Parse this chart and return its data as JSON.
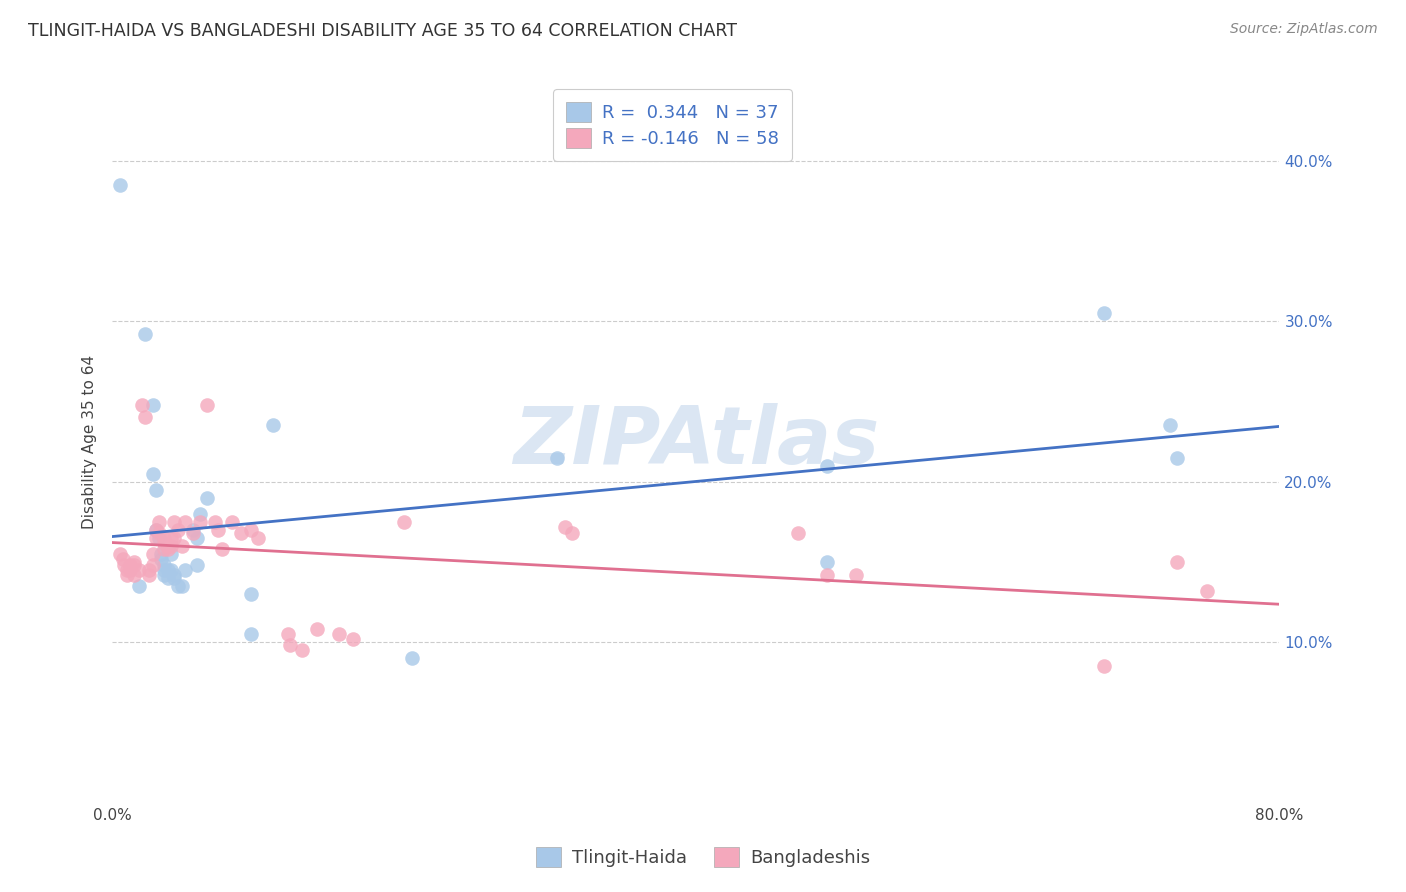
{
  "title": "TLINGIT-HAIDA VS BANGLADESHI DISABILITY AGE 35 TO 64 CORRELATION CHART",
  "source": "Source: ZipAtlas.com",
  "ylabel": "Disability Age 35 to 64",
  "watermark": "ZIPAtlas",
  "legend_blue_r_val": "0.344",
  "legend_blue_n_val": "37",
  "legend_pink_r_val": "-0.146",
  "legend_pink_n_val": "58",
  "legend_label_blue": "Tlingit-Haida",
  "legend_label_pink": "Bangladeshis",
  "xlim": [
    0.0,
    0.8
  ],
  "ylim": [
    0.0,
    0.45
  ],
  "yticks": [
    0.1,
    0.2,
    0.3,
    0.4
  ],
  "ytick_labels": [
    "10.0%",
    "20.0%",
    "30.0%",
    "40.0%"
  ],
  "xticks": [
    0.0,
    0.1,
    0.2,
    0.3,
    0.4,
    0.5,
    0.6,
    0.7,
    0.8
  ],
  "xtick_labels": [
    "0.0%",
    "",
    "",
    "",
    "",
    "",
    "",
    "",
    "80.0%"
  ],
  "blue_scatter_color": "#a8c8e8",
  "pink_scatter_color": "#f4a8bc",
  "blue_line_color": "#4472c4",
  "pink_line_color": "#e07090",
  "background_color": "#ffffff",
  "grid_color": "#cccccc",
  "blue_points": [
    [
      0.005,
      0.385
    ],
    [
      0.018,
      0.135
    ],
    [
      0.022,
      0.292
    ],
    [
      0.028,
      0.248
    ],
    [
      0.028,
      0.205
    ],
    [
      0.03,
      0.195
    ],
    [
      0.03,
      0.17
    ],
    [
      0.032,
      0.165
    ],
    [
      0.033,
      0.155
    ],
    [
      0.033,
      0.152
    ],
    [
      0.035,
      0.148
    ],
    [
      0.035,
      0.145
    ],
    [
      0.035,
      0.142
    ],
    [
      0.038,
      0.145
    ],
    [
      0.038,
      0.14
    ],
    [
      0.04,
      0.155
    ],
    [
      0.04,
      0.145
    ],
    [
      0.042,
      0.142
    ],
    [
      0.042,
      0.14
    ],
    [
      0.045,
      0.135
    ],
    [
      0.048,
      0.135
    ],
    [
      0.05,
      0.145
    ],
    [
      0.055,
      0.17
    ],
    [
      0.058,
      0.165
    ],
    [
      0.058,
      0.148
    ],
    [
      0.06,
      0.18
    ],
    [
      0.065,
      0.19
    ],
    [
      0.095,
      0.13
    ],
    [
      0.095,
      0.105
    ],
    [
      0.11,
      0.235
    ],
    [
      0.205,
      0.09
    ],
    [
      0.305,
      0.215
    ],
    [
      0.49,
      0.21
    ],
    [
      0.49,
      0.15
    ],
    [
      0.68,
      0.305
    ],
    [
      0.725,
      0.235
    ],
    [
      0.73,
      0.215
    ]
  ],
  "pink_points": [
    [
      0.005,
      0.155
    ],
    [
      0.007,
      0.152
    ],
    [
      0.008,
      0.148
    ],
    [
      0.01,
      0.145
    ],
    [
      0.01,
      0.142
    ],
    [
      0.012,
      0.148
    ],
    [
      0.012,
      0.145
    ],
    [
      0.015,
      0.15
    ],
    [
      0.015,
      0.148
    ],
    [
      0.015,
      0.142
    ],
    [
      0.018,
      0.145
    ],
    [
      0.02,
      0.248
    ],
    [
      0.022,
      0.24
    ],
    [
      0.025,
      0.145
    ],
    [
      0.025,
      0.142
    ],
    [
      0.028,
      0.148
    ],
    [
      0.028,
      0.155
    ],
    [
      0.03,
      0.17
    ],
    [
      0.03,
      0.165
    ],
    [
      0.032,
      0.175
    ],
    [
      0.032,
      0.168
    ],
    [
      0.035,
      0.165
    ],
    [
      0.035,
      0.162
    ],
    [
      0.035,
      0.158
    ],
    [
      0.038,
      0.16
    ],
    [
      0.038,
      0.158
    ],
    [
      0.04,
      0.165
    ],
    [
      0.04,
      0.16
    ],
    [
      0.042,
      0.165
    ],
    [
      0.042,
      0.175
    ],
    [
      0.045,
      0.17
    ],
    [
      0.048,
      0.16
    ],
    [
      0.05,
      0.175
    ],
    [
      0.055,
      0.168
    ],
    [
      0.06,
      0.175
    ],
    [
      0.065,
      0.248
    ],
    [
      0.07,
      0.175
    ],
    [
      0.072,
      0.17
    ],
    [
      0.075,
      0.158
    ],
    [
      0.082,
      0.175
    ],
    [
      0.088,
      0.168
    ],
    [
      0.095,
      0.17
    ],
    [
      0.1,
      0.165
    ],
    [
      0.12,
      0.105
    ],
    [
      0.122,
      0.098
    ],
    [
      0.13,
      0.095
    ],
    [
      0.14,
      0.108
    ],
    [
      0.155,
      0.105
    ],
    [
      0.165,
      0.102
    ],
    [
      0.2,
      0.175
    ],
    [
      0.31,
      0.172
    ],
    [
      0.315,
      0.168
    ],
    [
      0.47,
      0.168
    ],
    [
      0.49,
      0.142
    ],
    [
      0.51,
      0.142
    ],
    [
      0.68,
      0.085
    ],
    [
      0.73,
      0.15
    ],
    [
      0.75,
      0.132
    ]
  ]
}
